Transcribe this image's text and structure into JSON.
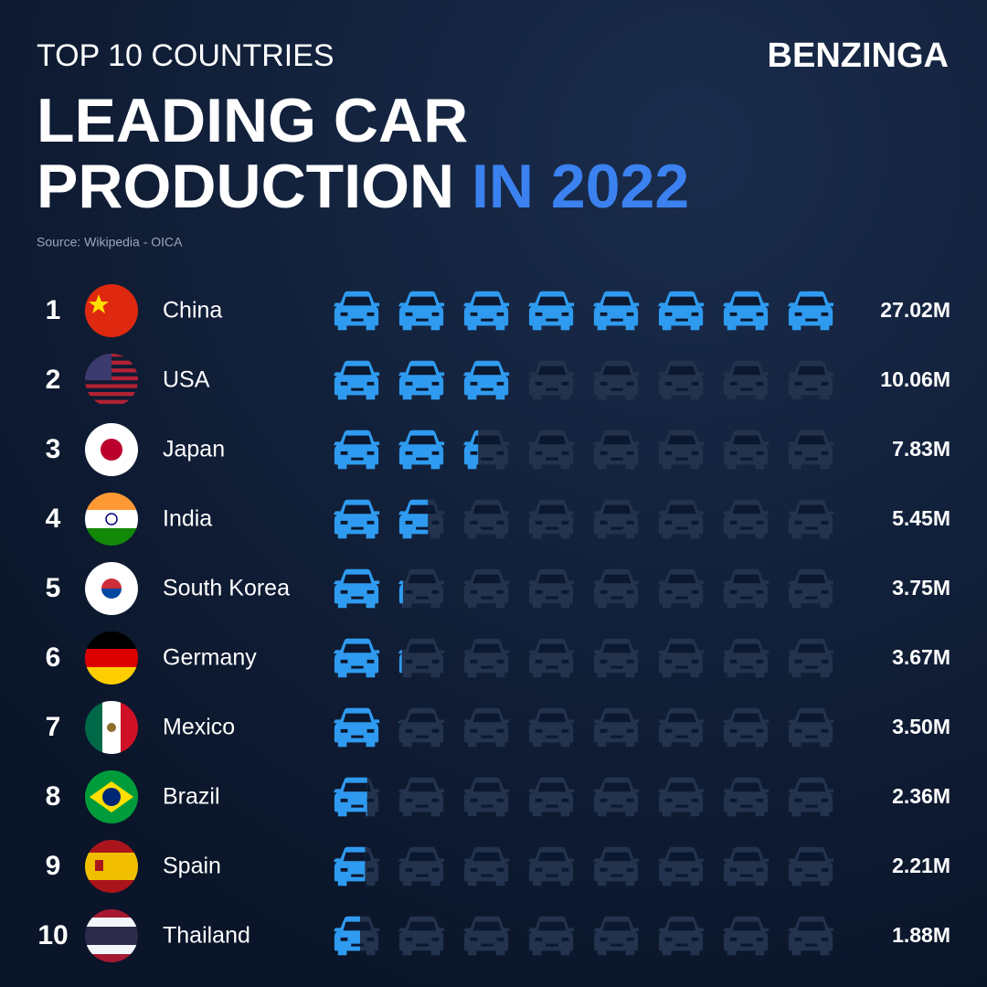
{
  "brand": "BENZINGA",
  "chart_data": {
    "type": "pictogram",
    "subtitle": "TOP 10 COUNTRIES",
    "title": "LEADING CAR PRODUCTION",
    "title_highlight": "IN 2022",
    "source": "Source: Wikipedia - OICA",
    "color": "#2f9bf0",
    "ranks": [
      1,
      2,
      3,
      4,
      5,
      6,
      7,
      8,
      9,
      10
    ],
    "categories": [
      "China",
      "USA",
      "Japan",
      "India",
      "South Korea",
      "Germany",
      "Mexico",
      "Brazil",
      "Spain",
      "Thailand"
    ],
    "values": [
      27.02,
      10.06,
      7.83,
      5.45,
      3.75,
      3.67,
      3.5,
      2.36,
      2.21,
      1.88
    ],
    "value_labels": [
      "27.02M",
      "10.06M",
      "7.83M",
      "5.45M",
      "3.75M",
      "3.67M",
      "3.50M",
      "2.36M",
      "2.21M",
      "1.88M"
    ]
  }
}
